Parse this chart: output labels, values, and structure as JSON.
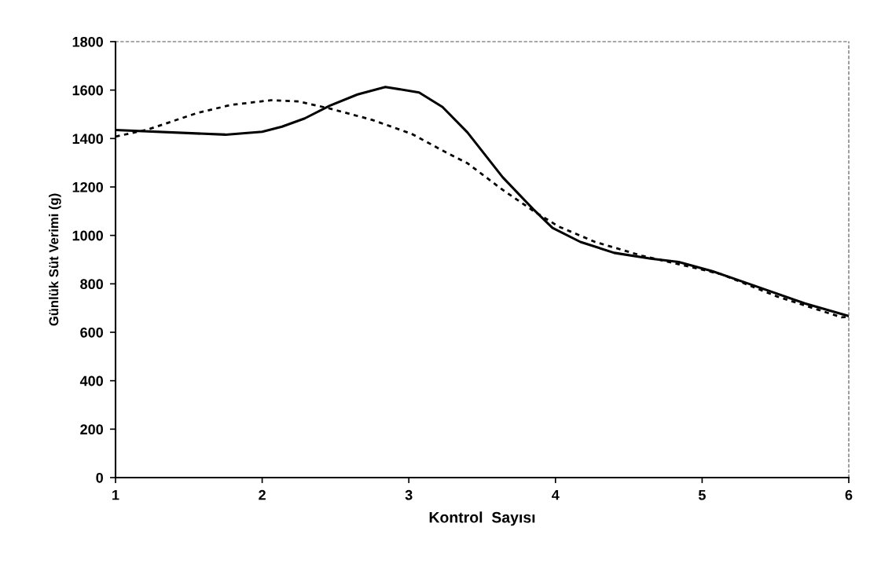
{
  "chart_data": {
    "type": "line",
    "xlabel": "Kontrol  Sayısı",
    "ylabel": "Günlük Süt Verimi (g)",
    "xlim": [
      1,
      6
    ],
    "xticks": [
      1,
      2,
      3,
      4,
      5,
      6
    ],
    "ylim": [
      0,
      1800
    ],
    "yticks": [
      0,
      200,
      400,
      600,
      800,
      1000,
      1200,
      1400,
      1600,
      1800
    ],
    "grid": false,
    "marker": "none",
    "series": [
      {
        "color": "#000000",
        "line_style": "solid",
        "x": [
          1,
          1.75,
          2.0,
          2.135,
          2.29,
          2.46,
          2.65,
          2.84,
          3.07,
          3.23,
          3.4,
          3.64,
          3.85,
          3.98,
          4.17,
          4.4,
          4.65,
          4.84,
          5.07,
          5.32,
          5.7,
          6
        ],
        "values": [
          1435,
          1416,
          1428,
          1449,
          1483,
          1535,
          1582,
          1613,
          1590,
          1530,
          1425,
          1240,
          1107,
          1031,
          973,
          928,
          904,
          890,
          852,
          800,
          719,
          667
        ]
      },
      {
        "color": "#000000",
        "line_style": "dotted",
        "x": [
          1,
          1.22,
          1.56,
          1.79,
          2.06,
          2.25,
          2.46,
          2.75,
          3.02,
          3.25,
          3.4,
          3.64,
          3.85,
          4.02,
          4.27,
          4.59,
          4.84,
          5.13,
          5.51,
          5.95,
          6
        ],
        "values": [
          1408,
          1437,
          1506,
          1539,
          1558,
          1553,
          1524,
          1477,
          1419,
          1344,
          1298,
          1188,
          1101,
          1037,
          973,
          916,
          881,
          840,
          748,
          662,
          664
        ]
      }
    ]
  }
}
